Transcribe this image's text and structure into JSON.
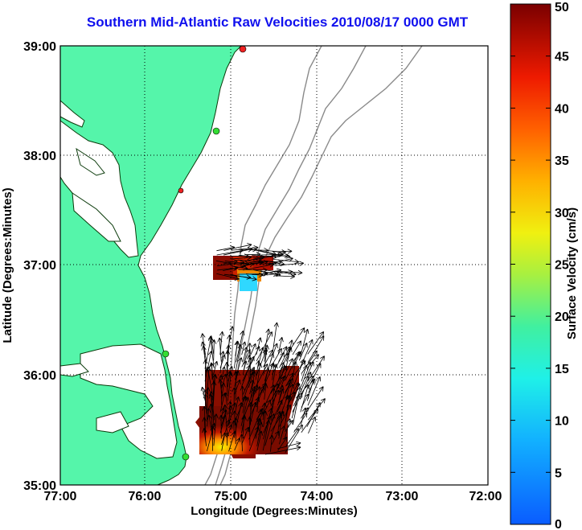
{
  "title": "Southern Mid-Atlantic Raw Velocities 2010/08/17 0000 GMT",
  "xaxis": {
    "label": "Longitude (Degrees:Minutes)",
    "ticks": [
      "77:00",
      "76:00",
      "75:00",
      "74:00",
      "73:00",
      "72:00"
    ]
  },
  "yaxis": {
    "label": "Latitude (Degrees:Minutes)",
    "ticks": [
      "39:00",
      "38:00",
      "37:00",
      "36:00",
      "35:00"
    ]
  },
  "colorbar": {
    "label": "Surface Velocity (cm/s)",
    "ticks": [
      "50",
      "45",
      "40",
      "35",
      "30",
      "25",
      "20",
      "15",
      "10",
      "5",
      "0"
    ],
    "min": 0,
    "max": 50
  },
  "colors": {
    "land": "#55f5aa",
    "title": "#1010ee",
    "vectors": "#000000",
    "bathymetry": "#8a8a8a",
    "station_active": "#33dd33",
    "station_inactive": "#ee2222"
  }
}
